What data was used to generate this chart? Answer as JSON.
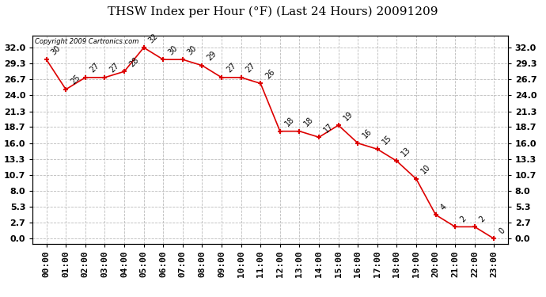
{
  "title": "THSW Index per Hour (°F) (Last 24 Hours) 20091209",
  "copyright": "Copyright 2009 Cartronics.com",
  "hours": [
    "00:00",
    "01:00",
    "02:00",
    "03:00",
    "04:00",
    "05:00",
    "06:00",
    "07:00",
    "08:00",
    "09:00",
    "10:00",
    "11:00",
    "12:00",
    "13:00",
    "14:00",
    "15:00",
    "16:00",
    "17:00",
    "18:00",
    "19:00",
    "20:00",
    "21:00",
    "22:00",
    "23:00"
  ],
  "values": [
    30,
    25,
    27,
    27,
    28,
    32,
    30,
    30,
    29,
    27,
    27,
    26,
    18,
    18,
    17,
    19,
    16,
    15,
    13,
    10,
    4,
    2,
    2,
    0
  ],
  "line_color": "#dd0000",
  "bg_color": "#ffffff",
  "grid_color": "#bbbbbb",
  "ylim": [
    -0.8,
    34.0
  ],
  "yticks": [
    0.0,
    2.7,
    5.3,
    8.0,
    10.7,
    13.3,
    16.0,
    18.7,
    21.3,
    24.0,
    26.7,
    29.3,
    32.0
  ],
  "title_fontsize": 11,
  "tick_fontsize": 8,
  "label_fontsize": 7,
  "annot_fontsize": 7
}
